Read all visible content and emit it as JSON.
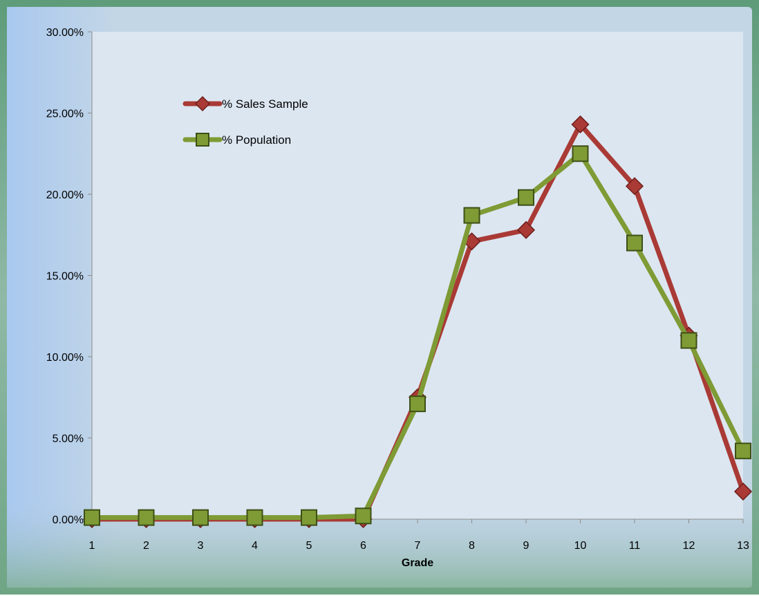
{
  "chart_data": {
    "type": "line",
    "title": "",
    "xlabel": "Grade",
    "ylabel": "",
    "categories": [
      "1",
      "2",
      "3",
      "4",
      "5",
      "6",
      "7",
      "8",
      "9",
      "10",
      "11",
      "12",
      "13"
    ],
    "yticks": [
      "0.00%",
      "5.00%",
      "10.00%",
      "15.00%",
      "20.00%",
      "25.00%",
      "30.00%"
    ],
    "ylim": [
      0,
      0.3
    ],
    "grid": false,
    "legend_position": "top-left",
    "series": [
      {
        "name": "% Sales Sample",
        "color": "#A93A35",
        "marker": "diamond",
        "values": [
          0.0,
          0.0,
          0.0,
          0.0,
          0.0,
          0.0,
          0.075,
          0.171,
          0.178,
          0.243,
          0.205,
          0.113,
          0.017
        ]
      },
      {
        "name": "% Population",
        "color": "#7E9B35",
        "marker": "square",
        "values": [
          0.001,
          0.001,
          0.001,
          0.001,
          0.001,
          0.002,
          0.071,
          0.187,
          0.198,
          0.225,
          0.17,
          0.11,
          0.042
        ]
      }
    ]
  }
}
